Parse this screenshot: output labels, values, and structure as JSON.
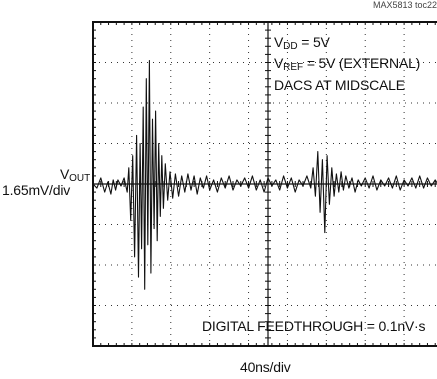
{
  "chart_data": {
    "type": "line",
    "part_number": "MAX5813 toc22",
    "annotations": {
      "vdd": {
        "prefix": "V",
        "sub": "DD",
        "suffix": " = 5V"
      },
      "vref": {
        "prefix": "V",
        "sub": "REF",
        "suffix": " = 5V (EXTERNAL)"
      },
      "dacs": "DACS AT MIDSCALE",
      "feedthrough": "DIGITAL FEEDTHROUGH = 0.1nV·s"
    },
    "ylabel": {
      "prefix": "V",
      "sub": "OUT",
      "scale": "1.65mV/div"
    },
    "xlabel": "40ns/div",
    "x_divisions": 9,
    "y_divisions": 8,
    "grid": true,
    "series": [
      {
        "x": [
          0.0,
          0.1,
          0.2,
          0.3,
          0.38,
          0.46,
          0.52,
          0.58,
          0.64,
          0.72,
          0.8,
          0.88,
          0.92,
          0.97,
          1.02,
          1.07,
          1.12,
          1.17,
          1.21,
          1.25,
          1.29,
          1.33,
          1.37,
          1.41,
          1.45,
          1.49,
          1.53,
          1.57,
          1.61,
          1.65,
          1.69,
          1.73,
          1.77,
          1.81,
          1.86,
          1.92,
          1.98,
          2.05,
          2.12,
          2.2,
          2.28,
          2.36,
          2.44,
          2.52,
          2.6,
          2.68,
          2.76,
          2.84,
          2.92,
          3.0,
          3.1,
          3.2,
          3.3,
          3.4,
          3.5,
          3.6,
          3.7,
          3.8,
          3.9,
          4.0,
          4.1,
          4.2,
          4.3,
          4.4,
          4.5,
          4.6,
          4.7,
          4.8,
          4.9,
          5.0,
          5.1,
          5.2,
          5.3,
          5.4,
          5.5,
          5.6,
          5.66,
          5.72,
          5.78,
          5.84,
          5.9,
          5.96,
          6.02,
          6.08,
          6.14,
          6.2,
          6.26,
          6.32,
          6.38,
          6.44,
          6.5,
          6.58,
          6.66,
          6.74,
          6.82,
          6.9,
          7.0,
          7.1,
          7.2,
          7.3,
          7.4,
          7.5,
          7.6,
          7.7,
          7.8,
          7.9,
          8.0,
          8.1,
          8.2,
          8.3,
          8.4,
          8.5,
          8.6,
          8.7,
          8.8,
          8.9,
          9.0
        ],
        "y": [
          0.0,
          -0.1,
          0.15,
          -0.2,
          0.05,
          -0.25,
          0.1,
          -0.15,
          0.1,
          -0.05,
          0.15,
          -0.2,
          0.4,
          -0.9,
          0.7,
          -1.8,
          1.2,
          -2.3,
          1.0,
          -1.6,
          1.9,
          -2.6,
          2.6,
          -1.5,
          3.05,
          -2.2,
          1.6,
          -1.1,
          1.8,
          -1.4,
          1.0,
          -0.8,
          0.7,
          -0.6,
          0.5,
          -0.4,
          0.3,
          -0.35,
          0.25,
          -0.3,
          0.2,
          -0.2,
          0.25,
          -0.15,
          0.2,
          -0.25,
          0.15,
          -0.1,
          0.2,
          -0.15,
          0.1,
          -0.2,
          0.15,
          -0.1,
          0.2,
          -0.15,
          0.1,
          -0.05,
          0.15,
          -0.1,
          0.2,
          -0.15,
          0.1,
          -0.2,
          0.15,
          -0.05,
          0.1,
          -0.15,
          0.2,
          -0.1,
          0.15,
          -0.2,
          0.1,
          -0.05,
          0.2,
          -0.1,
          0.4,
          -0.3,
          0.8,
          -0.7,
          0.6,
          -1.2,
          0.7,
          -0.5,
          0.4,
          -0.3,
          0.25,
          -0.2,
          0.3,
          -0.15,
          0.2,
          -0.1,
          0.15,
          -0.2,
          0.1,
          -0.05,
          0.15,
          -0.1,
          0.2,
          -0.15,
          0.1,
          -0.05,
          0.15,
          -0.1,
          0.2,
          -0.15,
          0.1,
          -0.05,
          0.15,
          -0.1,
          0.2,
          -0.1,
          0.15,
          -0.05,
          0.1,
          -0.05,
          0.05
        ],
        "color": "#111111"
      }
    ]
  }
}
